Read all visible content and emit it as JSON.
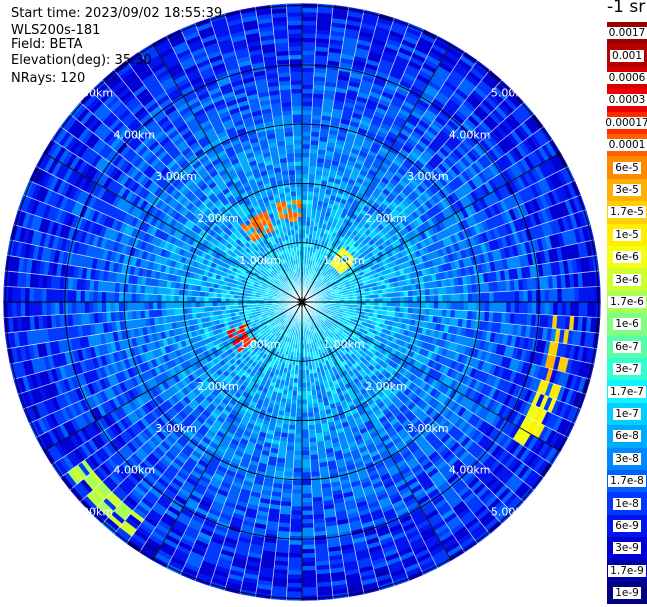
{
  "info": {
    "start_time": "Start time: 2023/09/02 18:55:39",
    "instrument": "WLS200s-181",
    "field": "Field: BETA",
    "elevation": "Elevation(deg): 35.30",
    "nrays": "NRays: 120"
  },
  "chart_data": {
    "type": "heatmap",
    "projection": "polar PPI",
    "field": "BETA",
    "unit_label": "-1 sr",
    "n_rays": 120,
    "elevation_deg": 35.3,
    "max_range_km": 5,
    "range_rings_km": [
      1,
      2,
      3,
      4,
      5
    ],
    "ring_labels": [
      "1.00km",
      "2.00km",
      "3.00km",
      "4.00km",
      "5.00km"
    ],
    "spokes_deg": [
      0,
      30,
      60,
      90,
      120,
      150,
      180,
      210,
      240,
      270,
      300,
      330
    ],
    "approx_background_beta": "1e-7 (near) to 6e-9 (far)",
    "hotspots": [
      {
        "azimuth_deg": 330,
        "range_km": 1.5,
        "beta": "1e-4"
      },
      {
        "azimuth_deg": 352,
        "range_km": 1.55,
        "beta": "1e-4"
      },
      {
        "azimuth_deg": 45,
        "range_km": 1.0,
        "beta": "1e-5"
      },
      {
        "azimuth_deg": 240,
        "range_km": 1.2,
        "beta": "3e-4"
      },
      {
        "azimuth_deg": 100,
        "range_km": 4.4,
        "beta": "3e-5"
      },
      {
        "azimuth_deg": 115,
        "range_km": 4.4,
        "beta": "1e-5"
      },
      {
        "azimuth_deg": 225,
        "range_km": 4.7,
        "beta": "3e-6"
      }
    ],
    "colorbar": {
      "labels": [
        "0.0017",
        "0.001",
        "0.0006",
        "0.0003",
        "0.00017",
        "0.0001",
        "6e-5",
        "3e-5",
        "1.7e-5",
        "1e-5",
        "6e-6",
        "3e-6",
        "1.7e-6",
        "1e-6",
        "6e-7",
        "3e-7",
        "1.7e-7",
        "1e-7",
        "6e-8",
        "3e-8",
        "1.7e-8",
        "1e-8",
        "6e-9",
        "3e-9",
        "1.7e-9",
        "1e-9"
      ],
      "colors": [
        "#9a0000",
        "#b80000",
        "#d40000",
        "#ee0000",
        "#ff2a00",
        "#ff6000",
        "#ff8c00",
        "#ffb000",
        "#ffd000",
        "#ffee00",
        "#f2ff10",
        "#d0ff30",
        "#a8ff58",
        "#80ff80",
        "#58ffa8",
        "#30ffd0",
        "#10f2ff",
        "#00d0ff",
        "#00aaff",
        "#0088ff",
        "#0060ff",
        "#0038ff",
        "#0014f0",
        "#0000d4",
        "#0000a8",
        "#000080"
      ]
    }
  }
}
